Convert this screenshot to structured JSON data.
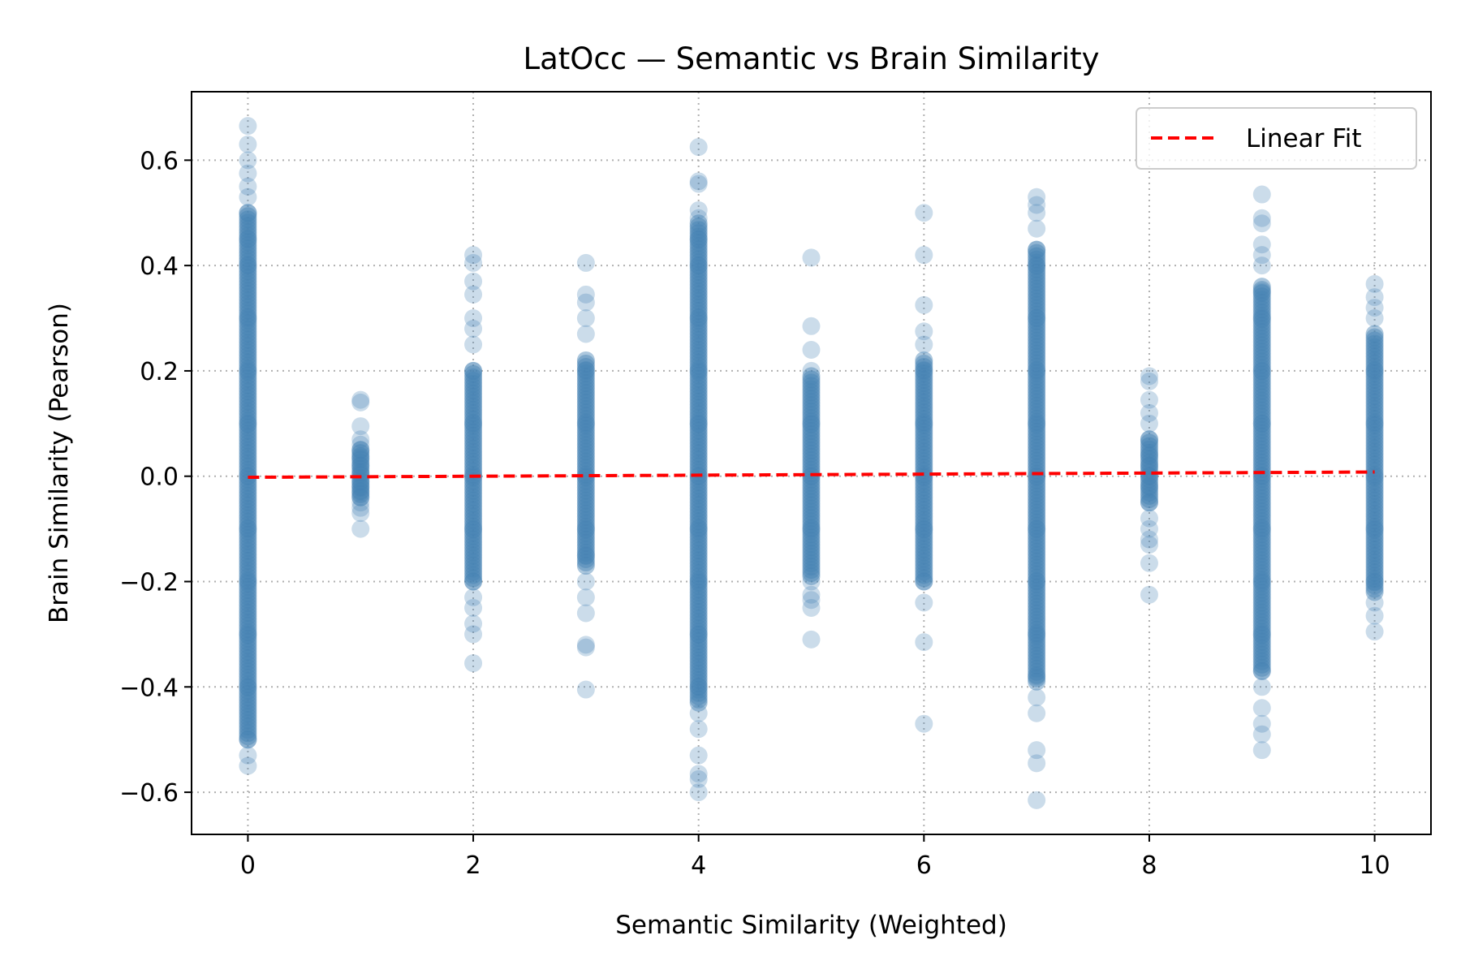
{
  "chart_data": {
    "type": "scatter",
    "title": "LatOcc — Semantic vs Brain Similarity",
    "xlabel": "Semantic Similarity (Weighted)",
    "ylabel": "Brain Similarity (Pearson)",
    "xlim": [
      -0.5,
      10.5
    ],
    "ylim": [
      -0.68,
      0.73
    ],
    "x_ticks": [
      0,
      2,
      4,
      6,
      8,
      10
    ],
    "x_tick_labels": [
      "0",
      "2",
      "4",
      "6",
      "8",
      "10"
    ],
    "y_ticks": [
      -0.6,
      -0.4,
      -0.2,
      0.0,
      0.2,
      0.4,
      0.6
    ],
    "y_tick_labels": [
      "−0.6",
      "−0.4",
      "−0.2",
      "0.0",
      "0.2",
      "0.4",
      "0.6"
    ],
    "grid": true,
    "legend_position": "top-right",
    "colors": {
      "points": "#4682b4",
      "fit_line": "#ff0000"
    },
    "series": [
      {
        "name": "",
        "kind": "scatter",
        "points": [
          [
            0,
            0.665
          ],
          [
            0,
            0.63
          ],
          [
            0,
            0.6
          ],
          [
            0,
            0.575
          ],
          [
            0,
            0.55
          ],
          [
            0,
            0.53
          ],
          [
            0,
            0.5
          ],
          [
            0,
            0.45
          ],
          [
            0,
            0.4
          ],
          [
            0,
            0.3
          ],
          [
            0,
            0.2
          ],
          [
            0,
            0.1
          ],
          [
            0,
            0.0
          ],
          [
            0,
            -0.1
          ],
          [
            0,
            -0.2
          ],
          [
            0,
            -0.3
          ],
          [
            0,
            -0.4
          ],
          [
            0,
            -0.5
          ],
          [
            0,
            -0.53
          ],
          [
            0,
            -0.55
          ],
          [
            1,
            0.145
          ],
          [
            1,
            0.14
          ],
          [
            1,
            0.095
          ],
          [
            1,
            0.07
          ],
          [
            1,
            0.06
          ],
          [
            1,
            0.05
          ],
          [
            1,
            0.035
          ],
          [
            1,
            0.02
          ],
          [
            1,
            0.005
          ],
          [
            1,
            -0.01
          ],
          [
            1,
            -0.02
          ],
          [
            1,
            -0.03
          ],
          [
            1,
            -0.04
          ],
          [
            1,
            -0.05
          ],
          [
            1,
            -0.06
          ],
          [
            1,
            -0.07
          ],
          [
            1,
            -0.1
          ],
          [
            2,
            0.42
          ],
          [
            2,
            0.405
          ],
          [
            2,
            0.37
          ],
          [
            2,
            0.345
          ],
          [
            2,
            0.3
          ],
          [
            2,
            0.28
          ],
          [
            2,
            0.25
          ],
          [
            2,
            0.2
          ],
          [
            2,
            0.1
          ],
          [
            2,
            0.0
          ],
          [
            2,
            -0.1
          ],
          [
            2,
            -0.2
          ],
          [
            2,
            -0.23
          ],
          [
            2,
            -0.25
          ],
          [
            2,
            -0.28
          ],
          [
            2,
            -0.3
          ],
          [
            2,
            -0.355
          ],
          [
            3,
            0.405
          ],
          [
            3,
            0.345
          ],
          [
            3,
            0.33
          ],
          [
            3,
            0.3
          ],
          [
            3,
            0.27
          ],
          [
            3,
            0.2
          ],
          [
            3,
            0.1
          ],
          [
            3,
            0.0
          ],
          [
            3,
            -0.1
          ],
          [
            3,
            -0.15
          ],
          [
            3,
            -0.2
          ],
          [
            3,
            -0.23
          ],
          [
            3,
            -0.26
          ],
          [
            3,
            -0.32
          ],
          [
            3,
            -0.325
          ],
          [
            3,
            -0.405
          ],
          [
            4,
            0.625
          ],
          [
            4,
            0.56
          ],
          [
            4,
            0.555
          ],
          [
            4,
            0.505
          ],
          [
            4,
            0.49
          ],
          [
            4,
            0.45
          ],
          [
            4,
            0.4
          ],
          [
            4,
            0.3
          ],
          [
            4,
            0.2
          ],
          [
            4,
            0.1
          ],
          [
            4,
            0.0
          ],
          [
            4,
            -0.1
          ],
          [
            4,
            -0.2
          ],
          [
            4,
            -0.3
          ],
          [
            4,
            -0.4
          ],
          [
            4,
            -0.45
          ],
          [
            4,
            -0.48
          ],
          [
            4,
            -0.53
          ],
          [
            4,
            -0.565
          ],
          [
            4,
            -0.575
          ],
          [
            4,
            -0.6
          ],
          [
            5,
            0.415
          ],
          [
            5,
            0.285
          ],
          [
            5,
            0.24
          ],
          [
            5,
            0.2
          ],
          [
            5,
            0.1
          ],
          [
            5,
            0.0
          ],
          [
            5,
            -0.1
          ],
          [
            5,
            -0.2
          ],
          [
            5,
            -0.225
          ],
          [
            5,
            -0.235
          ],
          [
            5,
            -0.25
          ],
          [
            5,
            -0.31
          ],
          [
            6,
            0.5
          ],
          [
            6,
            0.42
          ],
          [
            6,
            0.325
          ],
          [
            6,
            0.275
          ],
          [
            6,
            0.25
          ],
          [
            6,
            0.2
          ],
          [
            6,
            0.1
          ],
          [
            6,
            0.0
          ],
          [
            6,
            -0.1
          ],
          [
            6,
            -0.2
          ],
          [
            6,
            -0.24
          ],
          [
            6,
            -0.315
          ],
          [
            6,
            -0.47
          ],
          [
            7,
            0.53
          ],
          [
            7,
            0.515
          ],
          [
            7,
            0.5
          ],
          [
            7,
            0.47
          ],
          [
            7,
            0.43
          ],
          [
            7,
            0.4
          ],
          [
            7,
            0.3
          ],
          [
            7,
            0.2
          ],
          [
            7,
            0.1
          ],
          [
            7,
            0.0
          ],
          [
            7,
            -0.1
          ],
          [
            7,
            -0.2
          ],
          [
            7,
            -0.3
          ],
          [
            7,
            -0.38
          ],
          [
            7,
            -0.42
          ],
          [
            7,
            -0.45
          ],
          [
            7,
            -0.52
          ],
          [
            7,
            -0.545
          ],
          [
            7,
            -0.615
          ],
          [
            8,
            0.19
          ],
          [
            8,
            0.18
          ],
          [
            8,
            0.145
          ],
          [
            8,
            0.12
          ],
          [
            8,
            0.1
          ],
          [
            8,
            0.07
          ],
          [
            8,
            0.04
          ],
          [
            8,
            0.02
          ],
          [
            8,
            0.0
          ],
          [
            8,
            -0.02
          ],
          [
            8,
            -0.05
          ],
          [
            8,
            -0.08
          ],
          [
            8,
            -0.1
          ],
          [
            8,
            -0.12
          ],
          [
            8,
            -0.13
          ],
          [
            8,
            -0.165
          ],
          [
            8,
            -0.225
          ],
          [
            9,
            0.535
          ],
          [
            9,
            0.49
          ],
          [
            9,
            0.48
          ],
          [
            9,
            0.44
          ],
          [
            9,
            0.42
          ],
          [
            9,
            0.4
          ],
          [
            9,
            0.35
          ],
          [
            9,
            0.3
          ],
          [
            9,
            0.2
          ],
          [
            9,
            0.1
          ],
          [
            9,
            0.0
          ],
          [
            9,
            -0.1
          ],
          [
            9,
            -0.2
          ],
          [
            9,
            -0.3
          ],
          [
            9,
            -0.37
          ],
          [
            9,
            -0.4
          ],
          [
            9,
            -0.44
          ],
          [
            9,
            -0.47
          ],
          [
            9,
            -0.49
          ],
          [
            9,
            -0.52
          ],
          [
            10,
            0.365
          ],
          [
            10,
            0.34
          ],
          [
            10,
            0.32
          ],
          [
            10,
            0.3
          ],
          [
            10,
            0.2
          ],
          [
            10,
            0.1
          ],
          [
            10,
            0.0
          ],
          [
            10,
            -0.1
          ],
          [
            10,
            -0.2
          ],
          [
            10,
            -0.24
          ],
          [
            10,
            -0.265
          ],
          [
            10,
            -0.295
          ]
        ],
        "bands": [
          {
            "x": 0,
            "y_range": [
              -0.5,
              0.5
            ]
          },
          {
            "x": 1,
            "y_range": [
              -0.04,
              0.05
            ]
          },
          {
            "x": 2,
            "y_range": [
              -0.2,
              0.2
            ]
          },
          {
            "x": 3,
            "y_range": [
              -0.17,
              0.22
            ]
          },
          {
            "x": 4,
            "y_range": [
              -0.43,
              0.48
            ]
          },
          {
            "x": 5,
            "y_range": [
              -0.19,
              0.19
            ]
          },
          {
            "x": 6,
            "y_range": [
              -0.2,
              0.22
            ]
          },
          {
            "x": 7,
            "y_range": [
              -0.39,
              0.43
            ]
          },
          {
            "x": 8,
            "y_range": [
              -0.05,
              0.07
            ]
          },
          {
            "x": 9,
            "y_range": [
              -0.37,
              0.36
            ]
          },
          {
            "x": 10,
            "y_range": [
              -0.22,
              0.27
            ]
          }
        ]
      },
      {
        "name": "Linear Fit",
        "kind": "line",
        "style": "dashed",
        "x": [
          0,
          10
        ],
        "y": [
          -0.002,
          0.008
        ]
      }
    ]
  }
}
